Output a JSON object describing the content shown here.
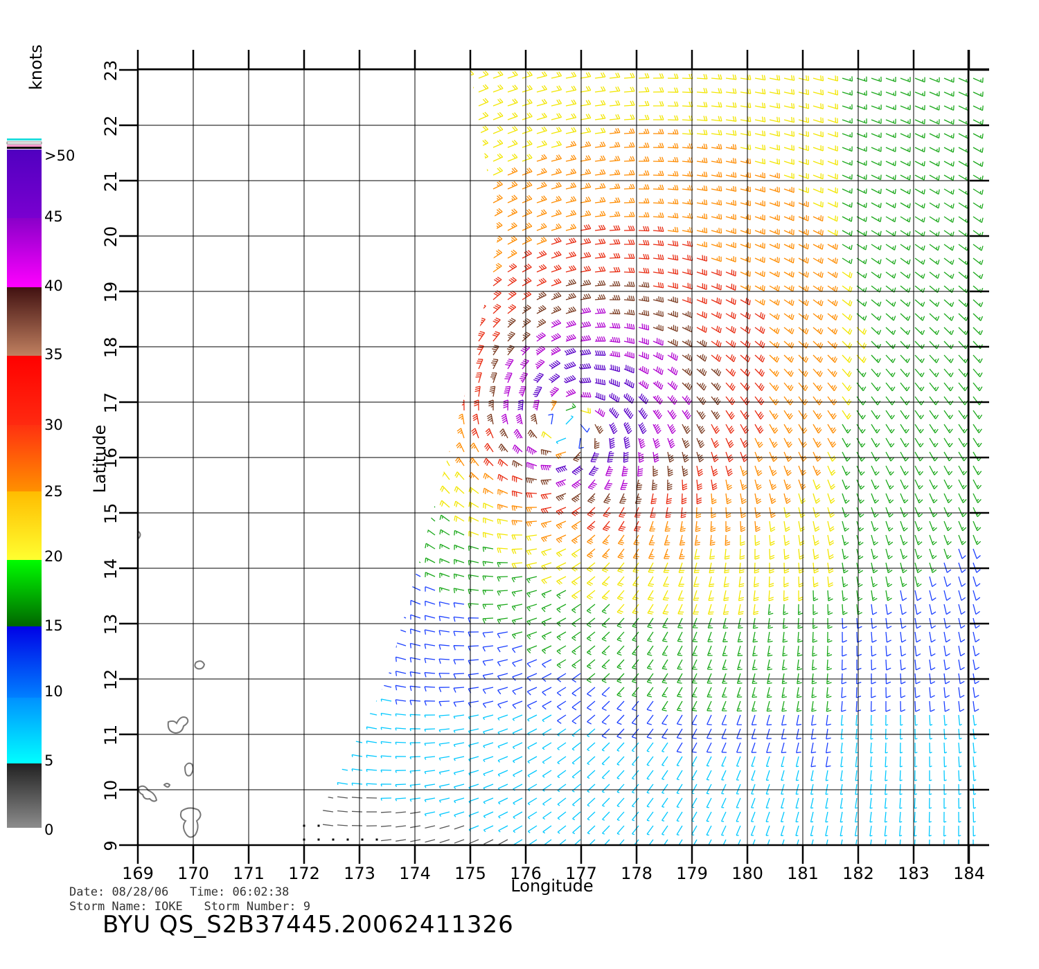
{
  "axes": {
    "xlabel": "Longitude",
    "ylabel": "Latitude",
    "x_ticks": [
      "169",
      "170",
      "171",
      "172",
      "173",
      "174",
      "175",
      "176",
      "177",
      "178",
      "179",
      "180",
      "181",
      "182",
      "183",
      "184"
    ],
    "y_ticks": [
      "9",
      "10",
      "11",
      "12",
      "13",
      "14",
      "15",
      "16",
      "17",
      "18",
      "19",
      "20",
      "21",
      "22",
      "23"
    ]
  },
  "colorbar": {
    "title": "knots",
    "labels": [
      ">50",
      "45",
      "40",
      "35",
      "30",
      "25",
      "20",
      "15",
      "10",
      "5",
      "0"
    ]
  },
  "footer": {
    "date_label": "Date:",
    "date": "08/28/06",
    "time_label": "Time:",
    "time": "06:02:38",
    "storm_name_label": "Storm Name:",
    "storm_name": "IOKE",
    "storm_number_label": "Storm Number:",
    "storm_number": "9",
    "product_id": "BYU QS_S2B37445.20062411326"
  },
  "chart_data": {
    "type": "wind-barb-map",
    "lon_range": [
      169,
      184.4
    ],
    "lat_range": [
      9,
      23
    ],
    "units": "knots",
    "storm_center": {
      "lon": 176.8,
      "lat": 16.6
    },
    "color_scale": [
      {
        "min": 0,
        "max": 5,
        "color": "#555555"
      },
      {
        "min": 5,
        "max": 10,
        "color": "#00c8ff"
      },
      {
        "min": 10,
        "max": 15,
        "color": "#1a3fff"
      },
      {
        "min": 15,
        "max": 20,
        "color": "#1aa81a"
      },
      {
        "min": 20,
        "max": 25,
        "color": "#f2e600"
      },
      {
        "min": 25,
        "max": 30,
        "color": "#ff8c00"
      },
      {
        "min": 30,
        "max": 35,
        "color": "#e82a10"
      },
      {
        "min": 35,
        "max": 40,
        "color": "#7a3a20"
      },
      {
        "min": 40,
        "max": 50,
        "color": "#b000d0"
      },
      {
        "min": 50,
        "max": 60,
        "color": "#5a00c8"
      }
    ],
    "swath_boundary": [
      [
        175,
        23
      ],
      [
        184.4,
        23
      ],
      [
        184.4,
        9
      ],
      [
        172,
        9
      ],
      [
        173.5,
        12
      ],
      [
        175,
        17.5
      ],
      [
        175.5,
        20
      ]
    ]
  }
}
